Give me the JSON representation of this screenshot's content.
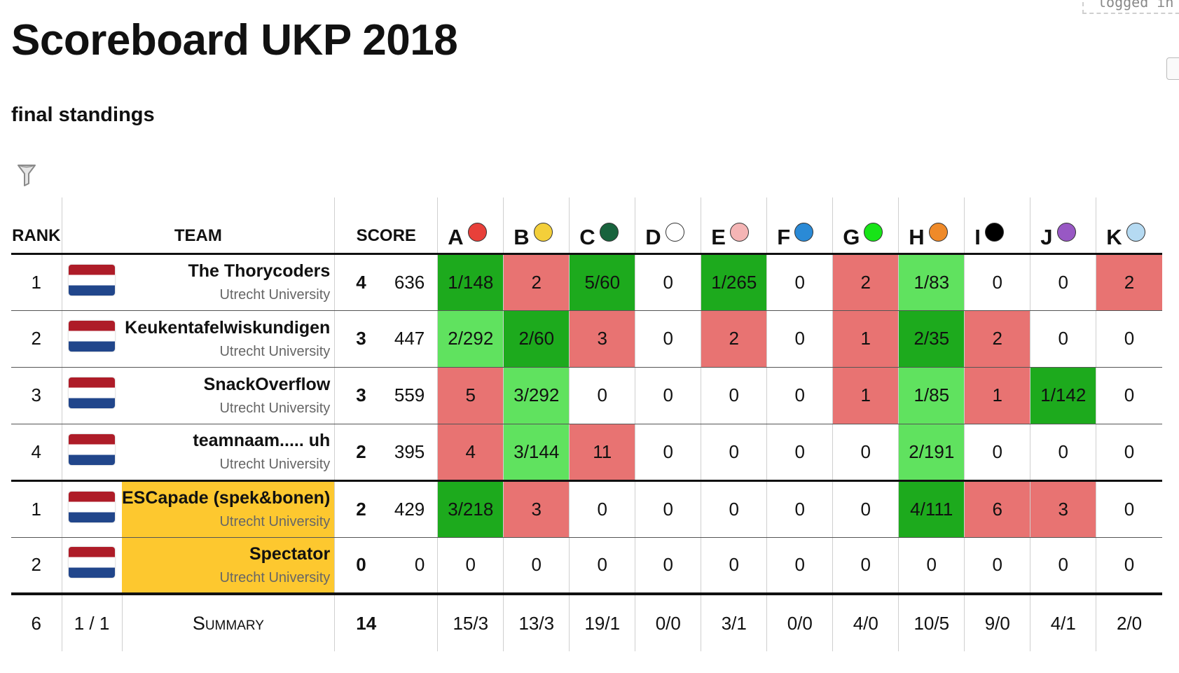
{
  "header": {
    "login_text": "logged in",
    "title": "Scoreboard UKP 2018",
    "subtitle": "final standings"
  },
  "columns": {
    "rank": "RANK",
    "team": "TEAM",
    "score": "SCORE"
  },
  "problems": [
    {
      "label": "A",
      "color": "#e8403a"
    },
    {
      "label": "B",
      "color": "#f3cf3a"
    },
    {
      "label": "C",
      "color": "#18633d"
    },
    {
      "label": "D",
      "color": "#ffffff"
    },
    {
      "label": "E",
      "color": "#f5b5b5"
    },
    {
      "label": "F",
      "color": "#2a8ad6"
    },
    {
      "label": "G",
      "color": "#17e417"
    },
    {
      "label": "H",
      "color": "#ef8a29"
    },
    {
      "label": "I",
      "color": "#000000"
    },
    {
      "label": "J",
      "color": "#9858c4"
    },
    {
      "label": "K",
      "color": "#b5daf2"
    }
  ],
  "teams": [
    {
      "rank": "1",
      "name": "The Thorycoders",
      "affiliation": "Utrecht University",
      "solved": "4",
      "time": "636",
      "cells": [
        {
          "v": "1/148",
          "s": "ok"
        },
        {
          "v": "2",
          "s": "bad"
        },
        {
          "v": "5/60",
          "s": "ok"
        },
        {
          "v": "0",
          "s": ""
        },
        {
          "v": "1/265",
          "s": "ok"
        },
        {
          "v": "0",
          "s": ""
        },
        {
          "v": "2",
          "s": "bad"
        },
        {
          "v": "1/83",
          "s": "okl"
        },
        {
          "v": "0",
          "s": ""
        },
        {
          "v": "0",
          "s": ""
        },
        {
          "v": "2",
          "s": "bad"
        }
      ]
    },
    {
      "rank": "2",
      "name": "Keukentafelwiskundigen",
      "affiliation": "Utrecht University",
      "solved": "3",
      "time": "447",
      "cells": [
        {
          "v": "2/292",
          "s": "okl"
        },
        {
          "v": "2/60",
          "s": "ok"
        },
        {
          "v": "3",
          "s": "bad"
        },
        {
          "v": "0",
          "s": ""
        },
        {
          "v": "2",
          "s": "bad"
        },
        {
          "v": "0",
          "s": ""
        },
        {
          "v": "1",
          "s": "bad"
        },
        {
          "v": "2/35",
          "s": "ok"
        },
        {
          "v": "2",
          "s": "bad"
        },
        {
          "v": "0",
          "s": ""
        },
        {
          "v": "0",
          "s": ""
        }
      ]
    },
    {
      "rank": "3",
      "name": "SnackOverflow",
      "affiliation": "Utrecht University",
      "solved": "3",
      "time": "559",
      "cells": [
        {
          "v": "5",
          "s": "bad"
        },
        {
          "v": "3/292",
          "s": "okl"
        },
        {
          "v": "0",
          "s": ""
        },
        {
          "v": "0",
          "s": ""
        },
        {
          "v": "0",
          "s": ""
        },
        {
          "v": "0",
          "s": ""
        },
        {
          "v": "1",
          "s": "bad"
        },
        {
          "v": "1/85",
          "s": "okl"
        },
        {
          "v": "1",
          "s": "bad"
        },
        {
          "v": "1/142",
          "s": "ok"
        },
        {
          "v": "0",
          "s": ""
        }
      ]
    },
    {
      "rank": "4",
      "name": "teamnaam..... uh",
      "affiliation": "Utrecht University",
      "solved": "2",
      "time": "395",
      "cells": [
        {
          "v": "4",
          "s": "bad"
        },
        {
          "v": "3/144",
          "s": "okl"
        },
        {
          "v": "11",
          "s": "bad"
        },
        {
          "v": "0",
          "s": ""
        },
        {
          "v": "0",
          "s": ""
        },
        {
          "v": "0",
          "s": ""
        },
        {
          "v": "0",
          "s": ""
        },
        {
          "v": "2/191",
          "s": "okl"
        },
        {
          "v": "0",
          "s": ""
        },
        {
          "v": "0",
          "s": ""
        },
        {
          "v": "0",
          "s": ""
        }
      ]
    },
    {
      "rank": "1",
      "name": "ESCapade (spek&bonen)",
      "affiliation": "Utrecht University",
      "solved": "2",
      "time": "429",
      "highlight": true,
      "cells": [
        {
          "v": "3/218",
          "s": "ok"
        },
        {
          "v": "3",
          "s": "bad"
        },
        {
          "v": "0",
          "s": ""
        },
        {
          "v": "0",
          "s": ""
        },
        {
          "v": "0",
          "s": ""
        },
        {
          "v": "0",
          "s": ""
        },
        {
          "v": "0",
          "s": ""
        },
        {
          "v": "4/111",
          "s": "ok"
        },
        {
          "v": "6",
          "s": "bad"
        },
        {
          "v": "3",
          "s": "bad"
        },
        {
          "v": "0",
          "s": ""
        }
      ]
    },
    {
      "rank": "2",
      "name": "Spectator",
      "affiliation": "Utrecht University",
      "solved": "0",
      "time": "0",
      "highlight": true,
      "cells": [
        {
          "v": "0",
          "s": ""
        },
        {
          "v": "0",
          "s": ""
        },
        {
          "v": "0",
          "s": ""
        },
        {
          "v": "0",
          "s": ""
        },
        {
          "v": "0",
          "s": ""
        },
        {
          "v": "0",
          "s": ""
        },
        {
          "v": "0",
          "s": ""
        },
        {
          "v": "0",
          "s": ""
        },
        {
          "v": "0",
          "s": ""
        },
        {
          "v": "0",
          "s": ""
        },
        {
          "v": "0",
          "s": ""
        }
      ]
    }
  ],
  "summary": {
    "count": "6",
    "affil": "1 / 1",
    "label": "Summary",
    "solved": "14",
    "problems": [
      "15/3",
      "13/3",
      "19/1",
      "0/0",
      "3/1",
      "0/0",
      "4/0",
      "10/5",
      "9/0",
      "4/1",
      "2/0"
    ]
  }
}
